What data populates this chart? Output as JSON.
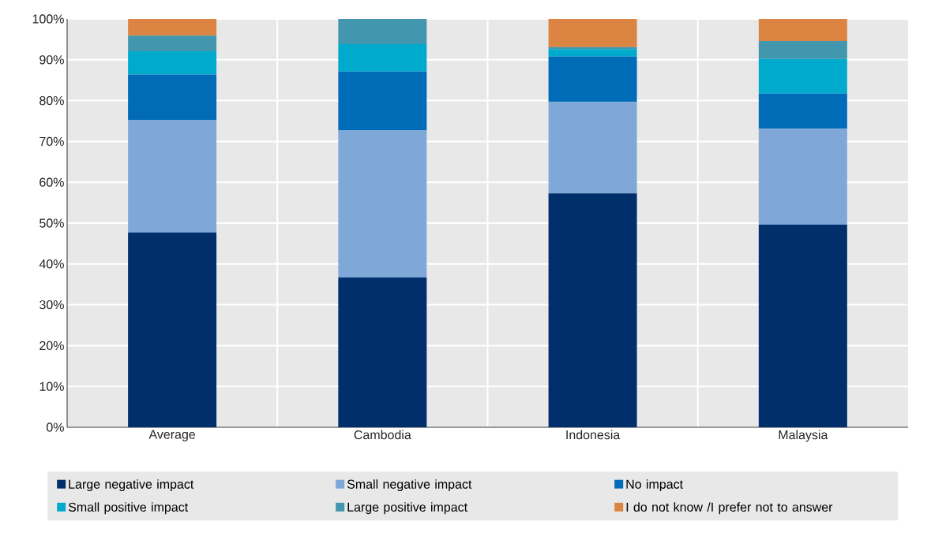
{
  "chart_data": {
    "type": "bar",
    "stacked": true,
    "categories": [
      "Average",
      "Cambodia",
      "Indonesia",
      "Malaysia"
    ],
    "series": [
      {
        "name": "Large negative impact",
        "color": "#002f6c",
        "values": [
          47.7,
          36.7,
          57.3,
          49.6
        ]
      },
      {
        "name": "Small negative impact",
        "color": "#7fa8d9",
        "values": [
          27.6,
          36.0,
          22.4,
          23.5
        ]
      },
      {
        "name": "No impact",
        "color": "#006bb6",
        "values": [
          11.1,
          14.4,
          11.1,
          8.6
        ]
      },
      {
        "name": "Small positive impact",
        "color": "#00aacc",
        "values": [
          5.7,
          6.7,
          1.8,
          8.5
        ]
      },
      {
        "name": "Large positive impact",
        "color": "#4297ae",
        "values": [
          3.8,
          6.2,
          0.5,
          4.4
        ]
      },
      {
        "name": "I do not know /I prefer not to answer",
        "color": "#dc8441",
        "values": [
          4.1,
          0,
          6.9,
          5.4
        ]
      }
    ],
    "ylim": [
      0,
      100
    ],
    "yticks": [
      {
        "value": 0,
        "label": "0%"
      },
      {
        "value": 10,
        "label": "10%"
      },
      {
        "value": 20,
        "label": "20%"
      },
      {
        "value": 30,
        "label": "30%"
      },
      {
        "value": 40,
        "label": "40%"
      },
      {
        "value": 50,
        "label": "50%"
      },
      {
        "value": 60,
        "label": "60%"
      },
      {
        "value": 70,
        "label": "70%"
      },
      {
        "value": 80,
        "label": "80%"
      },
      {
        "value": 90,
        "label": "90%"
      },
      {
        "value": 100,
        "label": "100%"
      }
    ],
    "grid": true,
    "legend": "bottom"
  }
}
